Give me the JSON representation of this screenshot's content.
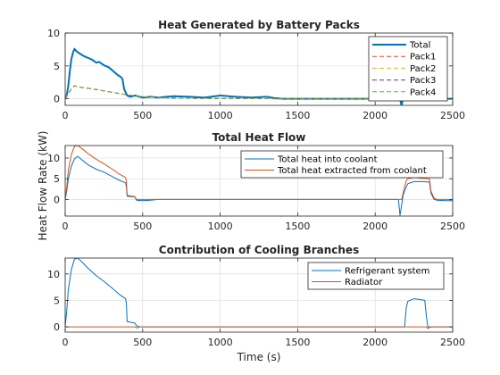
{
  "figure": {
    "ylabel": "Heat Flow Rate (kW)",
    "xlabel": "Time (s)"
  },
  "colors": {
    "blue": "#0072BD",
    "orange": "#D95319",
    "yellow": "#EDB120",
    "purple": "#7E2F8E",
    "green": "#77AC30"
  },
  "chart_data": [
    {
      "type": "line",
      "title": "Heat Generated by Battery Packs",
      "xlim": [
        0,
        2500
      ],
      "ylim": [
        -1,
        10
      ],
      "xticks": [
        0,
        500,
        1000,
        1500,
        2000,
        2500
      ],
      "yticks": [
        0,
        5,
        10
      ],
      "grid": true,
      "legend": "top-right",
      "series": [
        {
          "name": "Total",
          "style": "solid-thick",
          "color": "#0072BD",
          "x": [
            0,
            10,
            20,
            30,
            40,
            50,
            60,
            70,
            80,
            100,
            120,
            150,
            170,
            200,
            220,
            250,
            280,
            300,
            320,
            340,
            360,
            370,
            380,
            390,
            400,
            420,
            450,
            500,
            550,
            600,
            700,
            800,
            900,
            1000,
            1100,
            1200,
            1300,
            1350,
            1400,
            1500,
            1800,
            2000,
            2100,
            2160,
            2170,
            2180,
            2200,
            2300,
            2400,
            2450,
            2500
          ],
          "y": [
            0,
            0.5,
            2.0,
            4.2,
            6.0,
            7.0,
            7.6,
            7.3,
            7.1,
            6.8,
            6.5,
            6.2,
            6.0,
            5.5,
            5.6,
            5.1,
            4.8,
            4.4,
            4.0,
            3.6,
            3.3,
            3.0,
            1.5,
            1.0,
            0.5,
            0.3,
            0.5,
            0.2,
            0.3,
            0.2,
            0.4,
            0.3,
            0.2,
            0.5,
            0.3,
            0.2,
            0.3,
            0.1,
            0.0,
            0.0,
            0.0,
            0.0,
            0.0,
            0.0,
            -1.0,
            0.0,
            0.0,
            0.0,
            0.0,
            0.0,
            0.0
          ]
        },
        {
          "name": "Pack1",
          "style": "dashed",
          "color": "#D95319",
          "x": [
            0,
            40,
            60,
            80,
            150,
            200,
            300,
            400,
            500,
            700,
            1000,
            1200,
            1350,
            1400,
            2100,
            2200,
            2500
          ],
          "y": [
            0,
            1.5,
            2.0,
            1.8,
            1.6,
            1.4,
            1.0,
            0.6,
            0.3,
            0.1,
            0.05,
            0.05,
            0.0,
            0.0,
            0.0,
            0.0,
            0.0
          ]
        },
        {
          "name": "Pack2",
          "style": "dashed",
          "color": "#EDB120",
          "x": [
            0,
            40,
            60,
            80,
            150,
            200,
            300,
            400,
            500,
            700,
            1000,
            1200,
            1350,
            1400,
            2100,
            2200,
            2500
          ],
          "y": [
            0,
            1.5,
            2.0,
            1.8,
            1.6,
            1.4,
            1.0,
            0.6,
            0.3,
            0.1,
            0.05,
            0.05,
            0.0,
            0.0,
            0.0,
            0.0,
            0.0
          ]
        },
        {
          "name": "Pack3",
          "style": "dashed",
          "color": "#7E2F8E",
          "x": [
            0,
            40,
            60,
            80,
            150,
            200,
            300,
            400,
            500,
            700,
            1000,
            1200,
            1350,
            1400,
            2100,
            2200,
            2500
          ],
          "y": [
            0,
            1.5,
            2.0,
            1.8,
            1.6,
            1.4,
            1.0,
            0.6,
            0.3,
            0.1,
            0.05,
            0.05,
            0.0,
            0.0,
            0.0,
            0.0,
            0.0
          ]
        },
        {
          "name": "Pack4",
          "style": "dashed",
          "color": "#77AC30",
          "x": [
            0,
            40,
            60,
            80,
            150,
            200,
            300,
            400,
            500,
            700,
            1000,
            1200,
            1350,
            1400,
            2100,
            2200,
            2500
          ],
          "y": [
            0,
            1.5,
            2.0,
            1.8,
            1.6,
            1.4,
            1.0,
            0.6,
            0.3,
            0.1,
            0.05,
            0.05,
            0.0,
            0.0,
            0.0,
            0.0,
            0.0
          ]
        }
      ]
    },
    {
      "type": "line",
      "title": "Total Heat Flow",
      "xlim": [
        0,
        2500
      ],
      "ylim": [
        -4,
        13
      ],
      "xticks": [
        0,
        500,
        1000,
        1500,
        2000,
        2500
      ],
      "yticks": [
        0,
        5,
        10
      ],
      "grid": true,
      "legend": "top-right",
      "series": [
        {
          "name": "Total heat into coolant",
          "style": "solid",
          "color": "#0072BD",
          "x": [
            0,
            10,
            20,
            40,
            60,
            80,
            100,
            150,
            200,
            250,
            300,
            350,
            390,
            395,
            400,
            450,
            460,
            500,
            550,
            600,
            1000,
            1500,
            2000,
            2150,
            2160,
            2170,
            2180,
            2200,
            2210,
            2250,
            2300,
            2350,
            2360,
            2380,
            2400,
            2450,
            2500
          ],
          "y": [
            0,
            2.0,
            5.0,
            8.0,
            9.8,
            10.4,
            9.8,
            8.3,
            7.3,
            6.6,
            5.6,
            4.6,
            4.0,
            3.0,
            0.8,
            0.6,
            -0.2,
            -0.3,
            -0.2,
            0.0,
            0.0,
            0.0,
            0.0,
            0.0,
            -3.8,
            -1.5,
            1.0,
            3.0,
            3.8,
            4.3,
            4.3,
            4.2,
            1.5,
            0.0,
            -0.2,
            -0.3,
            -0.3
          ]
        },
        {
          "name": "Total heat extracted from coolant",
          "style": "solid",
          "color": "#D95319",
          "x": [
            0,
            10,
            20,
            40,
            60,
            80,
            100,
            150,
            200,
            250,
            300,
            350,
            390,
            395,
            400,
            450,
            460,
            500,
            550,
            600,
            1000,
            1500,
            2000,
            2150,
            2170,
            2200,
            2210,
            2250,
            2300,
            2350,
            2360,
            2380,
            2400,
            2450,
            2500
          ],
          "y": [
            0,
            3.0,
            7.0,
            10.8,
            12.8,
            13.0,
            12.5,
            11.0,
            9.7,
            8.6,
            7.4,
            6.1,
            5.3,
            4.3,
            1.0,
            0.7,
            0.0,
            0.0,
            0.0,
            0.0,
            0.0,
            0.0,
            0.0,
            0.0,
            0.0,
            4.5,
            5.0,
            5.3,
            5.1,
            5.0,
            2.0,
            0.3,
            0.0,
            0.0,
            0.0
          ]
        }
      ]
    },
    {
      "type": "line",
      "title": "Contribution of Cooling Branches",
      "xlim": [
        0,
        2500
      ],
      "ylim": [
        -1,
        13
      ],
      "xticks": [
        0,
        500,
        1000,
        1500,
        2000,
        2500
      ],
      "yticks": [
        0,
        5,
        10
      ],
      "grid": true,
      "legend": "top-right",
      "series": [
        {
          "name": "Refrigerant system",
          "style": "solid",
          "color": "#0072BD",
          "x": [
            0,
            10,
            20,
            40,
            60,
            80,
            100,
            150,
            200,
            250,
            300,
            350,
            390,
            395,
            400,
            450,
            460,
            480,
            500,
            550,
            600,
            1000,
            1500,
            2000,
            2190,
            2200,
            2210,
            2250,
            2300,
            2320,
            2330,
            2340,
            2500
          ],
          "y": [
            0,
            3.0,
            7.0,
            10.8,
            12.8,
            13.0,
            12.5,
            11.0,
            9.7,
            8.6,
            7.4,
            6.1,
            5.3,
            4.3,
            1.0,
            0.7,
            0.2,
            0.0,
            0.0,
            0.0,
            0.0,
            0.0,
            0.0,
            0.0,
            0.0,
            3.5,
            4.8,
            5.3,
            5.1,
            5.0,
            2.0,
            0.0,
            0.0
          ]
        },
        {
          "name": "Radiator",
          "style": "solid",
          "color": "#D95319",
          "x": [
            0,
            400,
            450,
            460,
            480,
            500,
            1000,
            1500,
            2000,
            2330,
            2340,
            2360,
            2400,
            2500
          ],
          "y": [
            0,
            0.0,
            0.0,
            -0.2,
            0.0,
            0.0,
            0.0,
            0.0,
            0.0,
            0.0,
            -0.3,
            0.0,
            0.0,
            0.0
          ]
        }
      ]
    }
  ]
}
